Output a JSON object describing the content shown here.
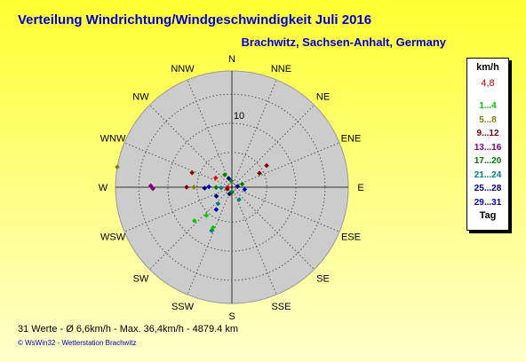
{
  "header": {
    "title": "Verteilung Windrichtung/Windgeschwindigkeit  Juli 2016",
    "subtitle": "Brachwitz, Sachsen-Anhalt, Germany"
  },
  "legend": {
    "unit": "km/h",
    "value": "4,8",
    "items": [
      {
        "label": "1...4",
        "color": "#00cc00"
      },
      {
        "label": "5...8",
        "color": "#808000"
      },
      {
        "label": "9...12",
        "color": "#800000"
      },
      {
        "label": "13...16",
        "color": "#800080"
      },
      {
        "label": "17...20",
        "color": "#008000"
      },
      {
        "label": "21...24",
        "color": "#008080"
      },
      {
        "label": "25...28",
        "color": "#000080"
      },
      {
        "label": "29...31",
        "color": "#0000cc"
      }
    ],
    "tag_label": "Tag"
  },
  "stats": "31 Werte   -   Ø 6,6km/h  -  Max. 36,4km/h  -   4879.4 km",
  "footer": "© WsWin32   -   Wetterstation Brachwitz",
  "chart_data": {
    "type": "scatter",
    "projection": "polar",
    "radial_tick_label": "10",
    "radial_tick_value": 10,
    "rmax": 16.2,
    "directions": [
      "N",
      "NNE",
      "NE",
      "ENE",
      "E",
      "ESE",
      "SE",
      "SSE",
      "S",
      "SSW",
      "SW",
      "WSW",
      "W",
      "WNW",
      "NW",
      "NNW"
    ],
    "points": [
      {
        "dir": 280,
        "r": 16.2,
        "color": "#808000"
      },
      {
        "dir": 271,
        "r": 11.3,
        "color": "#800080"
      },
      {
        "dir": 269,
        "r": 11.0,
        "color": "#800080"
      },
      {
        "dir": 270,
        "r": 6.3,
        "color": "#800000"
      },
      {
        "dir": 270,
        "r": 5.3,
        "color": "#808000"
      },
      {
        "dir": 268,
        "r": 3.8,
        "color": "#000080"
      },
      {
        "dir": 271,
        "r": 3.2,
        "color": "#0000cc"
      },
      {
        "dir": 269,
        "r": 2.2,
        "color": "#008000"
      },
      {
        "dir": 267,
        "r": 1.5,
        "color": "#008080"
      },
      {
        "dir": 270,
        "r": 0.6,
        "color": "#ff0000"
      },
      {
        "dir": 290,
        "r": 5.9,
        "color": "#800000"
      },
      {
        "dir": 300,
        "r": 2.6,
        "color": "#ff0000"
      },
      {
        "dir": 330,
        "r": 2.0,
        "color": "#008000"
      },
      {
        "dir": 340,
        "r": 1.3,
        "color": "#000080"
      },
      {
        "dir": 355,
        "r": 0.9,
        "color": "#008000"
      },
      {
        "dir": 58,
        "r": 5.7,
        "color": "#800000"
      },
      {
        "dir": 63,
        "r": 4.3,
        "color": "#800000"
      },
      {
        "dir": 73,
        "r": 1.5,
        "color": "#008000"
      },
      {
        "dir": 82,
        "r": 0.8,
        "color": "#000080"
      },
      {
        "dir": 100,
        "r": 1.8,
        "color": "#0000cc"
      },
      {
        "dir": 150,
        "r": 2.0,
        "color": "#008080"
      },
      {
        "dir": 222,
        "r": 5.3,
        "color": "#00cc00"
      },
      {
        "dir": 215,
        "r": 3.8,
        "color": "#0000cc"
      },
      {
        "dir": 228,
        "r": 7.0,
        "color": "#00cc00"
      },
      {
        "dir": 205,
        "r": 6.7,
        "color": "#008080"
      },
      {
        "dir": 205,
        "r": 6.2,
        "color": "#00cc00"
      },
      {
        "dir": 220,
        "r": 3.0,
        "color": "#008080"
      },
      {
        "dir": 240,
        "r": 2.5,
        "color": "#000080"
      },
      {
        "dir": 200,
        "r": 1.0,
        "color": "#000080"
      },
      {
        "dir": 250,
        "r": 0.7,
        "color": "#800000"
      },
      {
        "dir": 180,
        "r": 0.7,
        "color": "#008000"
      }
    ]
  }
}
